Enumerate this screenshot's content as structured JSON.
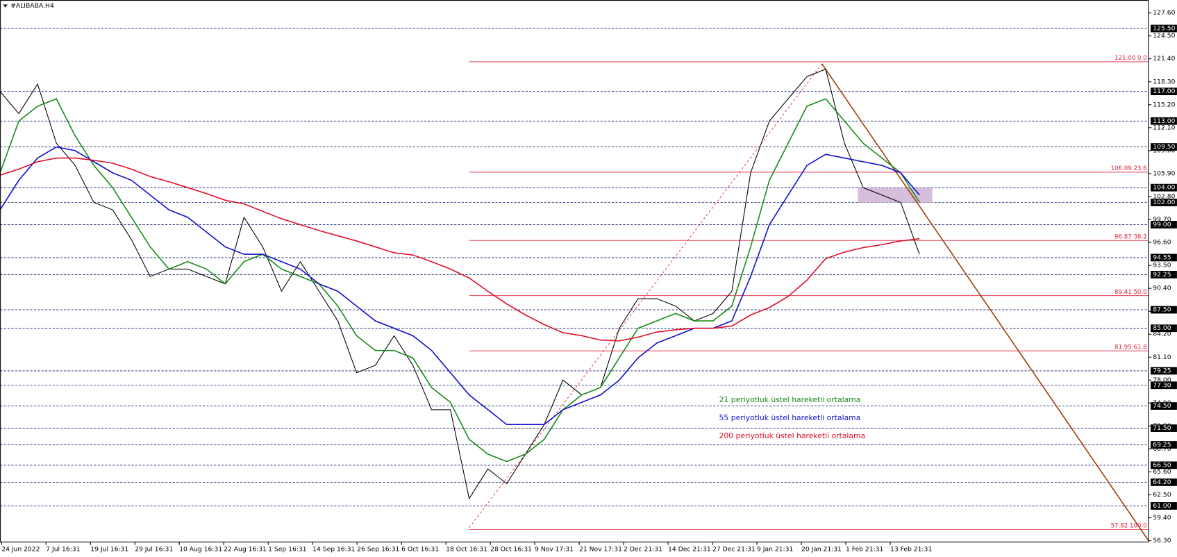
{
  "chart_data": {
    "type": "line",
    "title": "#ALIBABA,H4",
    "ylim": [
      56.13,
      129.35
    ],
    "yticks": [
      {
        "value": 127.6,
        "label": "127.60"
      },
      {
        "value": 124.5,
        "label": "124.50"
      },
      {
        "value": 121.4,
        "label": "121.40"
      },
      {
        "value": 118.3,
        "label": "118.30"
      },
      {
        "value": 115.2,
        "label": "115.20"
      },
      {
        "value": 112.1,
        "label": "112.10"
      },
      {
        "value": 109,
        "label": "109.00"
      },
      {
        "value": 105.9,
        "label": "105.90"
      },
      {
        "value": 102.8,
        "label": "102.80"
      },
      {
        "value": 99.7,
        "label": "99.70"
      },
      {
        "value": 96.6,
        "label": "96.60"
      },
      {
        "value": 93.5,
        "label": "93.50"
      },
      {
        "value": 90.4,
        "label": "90.40"
      },
      {
        "value": 87.3,
        "label": "87.30"
      },
      {
        "value": 84.2,
        "label": "84.20"
      },
      {
        "value": 81.1,
        "label": "81.10"
      },
      {
        "value": 78,
        "label": "78.00"
      },
      {
        "value": 74.9,
        "label": "74.90"
      },
      {
        "value": 71.8,
        "label": "71.80"
      },
      {
        "value": 68.7,
        "label": "68.70"
      },
      {
        "value": 65.6,
        "label": "65.60"
      },
      {
        "value": 62.5,
        "label": "62.50"
      },
      {
        "value": 59.4,
        "label": "59.40"
      },
      {
        "value": 56.3,
        "label": "56.30"
      }
    ],
    "levels": [
      {
        "value": 125.5,
        "label": "125.50"
      },
      {
        "value": 117,
        "label": "117.00"
      },
      {
        "value": 113,
        "label": "113.00"
      },
      {
        "value": 109.5,
        "label": "109.50"
      },
      {
        "value": 104,
        "label": "104.00"
      },
      {
        "value": 102,
        "label": "102.00"
      },
      {
        "value": 99,
        "label": "99.00"
      },
      {
        "value": 94.55,
        "label": "94.55"
      },
      {
        "value": 92.25,
        "label": "92.25"
      },
      {
        "value": 87.5,
        "label": "87.50"
      },
      {
        "value": 85,
        "label": "85.00"
      },
      {
        "value": 79.25,
        "label": "79.25"
      },
      {
        "value": 77.3,
        "label": "77.30"
      },
      {
        "value": 74.5,
        "label": "74.50"
      },
      {
        "value": 71.5,
        "label": "71.50"
      },
      {
        "value": 69.25,
        "label": "69.25"
      },
      {
        "value": 66.5,
        "label": "66.50"
      },
      {
        "value": 64.2,
        "label": "64.20"
      },
      {
        "value": 61,
        "label": "61.00"
      }
    ],
    "fib_levels": [
      {
        "value": 121,
        "label": "121.00 0.0"
      },
      {
        "value": 106.09,
        "label": "106.09 23.6"
      },
      {
        "value": 96.87,
        "label": "96.87 38.2"
      },
      {
        "value": 89.41,
        "label": "89.41 50.0"
      },
      {
        "value": 81.95,
        "label": "81.95 61.8"
      },
      {
        "value": 57.82,
        "label": "57.82 100.0"
      }
    ],
    "fib_color": "#e0203a",
    "level_color": "#0a1a6a",
    "x_tick_labels": [
      "24 Jun 2022",
      "7 Jul 16:31",
      "19 Jul 16:31",
      "29 Jul 16:31",
      "10 Aug 16:31",
      "22 Aug 16:31",
      "1 Sep 16:31",
      "14 Sep 16:31",
      "26 Sep 16:31",
      "6 Oct 16:31",
      "18 Oct 16:31",
      "28 Oct 16:31",
      "9 Nov 17:31",
      "21 Nov 17:31",
      "2 Dec 21:31",
      "14 Dec 21:31",
      "27 Dec 21:31",
      "9 Jan 21:31",
      "20 Jan 21:31",
      "1 Feb 21:31",
      "13 Feb 21:31"
    ],
    "price": {
      "color": "#000000",
      "values": [
        117,
        114,
        118,
        110,
        107,
        102,
        101,
        97,
        92,
        93,
        93,
        92,
        91,
        100,
        96,
        90,
        94,
        90,
        86,
        79,
        80,
        84,
        80,
        74,
        74,
        62,
        66,
        64,
        68,
        72,
        78,
        76,
        77,
        85,
        89,
        89,
        88,
        86,
        87,
        90,
        106,
        113,
        116,
        119,
        120,
        110,
        104,
        103,
        102,
        95
      ]
    },
    "series": [
      {
        "name": "21 periyotluk üstel hareketli ortalama",
        "color": "#1a8a1a",
        "values": [
          106,
          113,
          115,
          116,
          111,
          107,
          104,
          100,
          96,
          93,
          94,
          93,
          91,
          94,
          95,
          93,
          92,
          91,
          88,
          84,
          82,
          82,
          81,
          77,
          75,
          70,
          68,
          67,
          68,
          70,
          74,
          76,
          77,
          81,
          85,
          86,
          87,
          86,
          86,
          88,
          96,
          105,
          110,
          115,
          116,
          113,
          110,
          108,
          106,
          102
        ]
      },
      {
        "name": "55 periyotluk üstel hareketli ortalama",
        "color": "#1010d0",
        "values": [
          101,
          105,
          108,
          109.5,
          109,
          107.5,
          106,
          105,
          103,
          101,
          100,
          98,
          96,
          95,
          95,
          94,
          93,
          91,
          90,
          88,
          86,
          85,
          84,
          82,
          79,
          76,
          74,
          72,
          72,
          72,
          74,
          75,
          76,
          78,
          81,
          83,
          84,
          85,
          85,
          86,
          92,
          99,
          103,
          107,
          108.5,
          108,
          107.5,
          107,
          106,
          103
        ]
      },
      {
        "name": "200 periyotluk üstel hareketli ortalama",
        "color": "#e0102a",
        "values": [
          105.7,
          106.5,
          107.5,
          108,
          108,
          107.7,
          107.3,
          106.5,
          105.5,
          104.8,
          104,
          103.2,
          102.3,
          101.8,
          100.8,
          99.8,
          99,
          98.2,
          97.5,
          96.8,
          96,
          95.2,
          94.9,
          94,
          93,
          91.8,
          90,
          88.3,
          86.8,
          85.5,
          84.4,
          84,
          83.4,
          83.3,
          83.8,
          84.5,
          84.8,
          85,
          85,
          85.3,
          86.8,
          87.8,
          89.3,
          91.5,
          94.4,
          95.3,
          95.9,
          96.3,
          96.8,
          97.1
        ]
      }
    ]
  }
}
